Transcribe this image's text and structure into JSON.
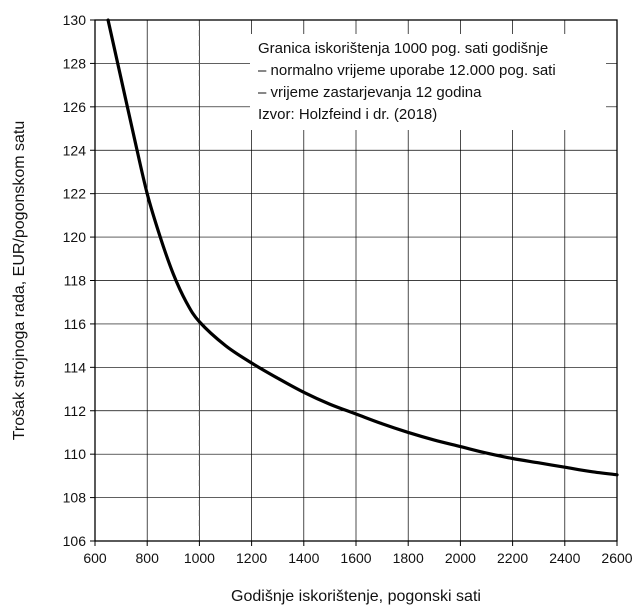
{
  "chart_data": {
    "type": "line",
    "xlabel": "Godišnje iskorištenje, pogonski sati",
    "ylabel": "Trošak strojnoga rada, EUR/pogonskom satu",
    "xlim": [
      600,
      2600
    ],
    "ylim": [
      106,
      130
    ],
    "xticks": [
      600,
      800,
      1000,
      1200,
      1400,
      1600,
      1800,
      2000,
      2200,
      2400,
      2600
    ],
    "yticks": [
      106,
      108,
      110,
      112,
      114,
      116,
      118,
      120,
      122,
      124,
      126,
      128,
      130
    ],
    "grid": true,
    "reference_line": {
      "x": 1000,
      "style": "dashed"
    },
    "annotation": [
      "Granica iskorištenja 1000 pog. sati godišnje",
      "– normalno vrijeme uporabe 12.000 pog. sati",
      "– vrijeme zastarjevanja 12 godina",
      "Izvor: Holzfeind i dr. (2018)"
    ],
    "series": [
      {
        "x": [
          650,
          700,
          750,
          800,
          850,
          900,
          950,
          1000,
          1100,
          1200,
          1300,
          1400,
          1500,
          1600,
          1700,
          1800,
          1900,
          2000,
          2100,
          2200,
          2300,
          2400,
          2500,
          2600
        ],
        "y": [
          130.0,
          127.3,
          124.6,
          122.0,
          120.0,
          118.3,
          117.0,
          116.1,
          115.0,
          114.2,
          113.5,
          112.85,
          112.3,
          111.85,
          111.4,
          111.0,
          110.65,
          110.35,
          110.05,
          109.8,
          109.6,
          109.4,
          109.2,
          109.05
        ]
      }
    ]
  }
}
